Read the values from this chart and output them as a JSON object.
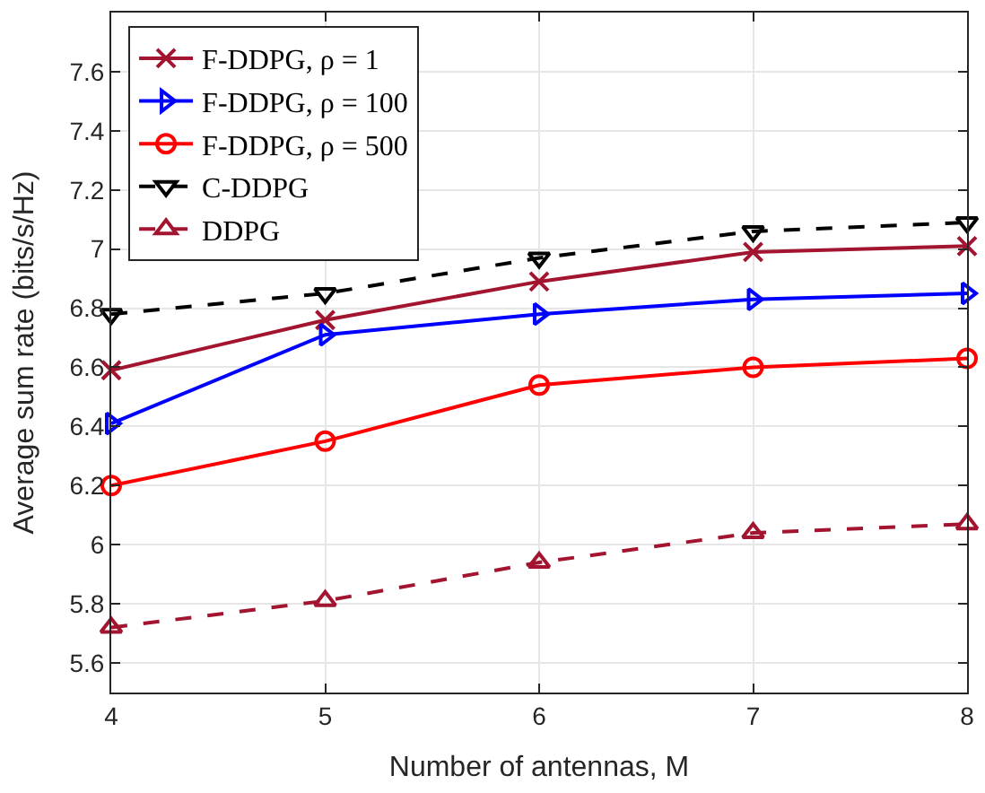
{
  "chart_data": {
    "type": "line",
    "xlabel": "Number of antennas, M",
    "ylabel": "Average sum rate (bits/s/Hz)",
    "x": [
      4,
      5,
      6,
      7,
      8
    ],
    "series": [
      {
        "name": "F-DDPG, ρ = 1",
        "color": "#a2142f",
        "marker": "cross",
        "line_style": "solid",
        "values": [
          6.59,
          6.76,
          6.89,
          6.99,
          7.01
        ]
      },
      {
        "name": "F-DDPG, ρ = 100",
        "color": "#0000ff",
        "marker": "triangle-right",
        "line_style": "solid",
        "values": [
          6.41,
          6.71,
          6.78,
          6.83,
          6.85
        ]
      },
      {
        "name": "F-DDPG, ρ = 500",
        "color": "#ff0000",
        "marker": "circle",
        "line_style": "solid",
        "values": [
          6.2,
          6.35,
          6.54,
          6.6,
          6.63
        ]
      },
      {
        "name": "C-DDPG",
        "color": "#000000",
        "marker": "triangle-down",
        "line_style": "dashed",
        "values": [
          6.78,
          6.85,
          6.97,
          7.06,
          7.09
        ]
      },
      {
        "name": "DDPG",
        "color": "#a2142f",
        "marker": "triangle",
        "line_style": "dashed",
        "values": [
          5.72,
          5.81,
          5.94,
          6.04,
          6.07
        ]
      }
    ],
    "xlim": [
      4,
      8
    ],
    "xticks": [
      4,
      5,
      6,
      7,
      8
    ],
    "ylim": [
      5.5,
      7.8
    ],
    "yticks": [
      5.6,
      5.8,
      6,
      6.2,
      6.4,
      6.6,
      6.8,
      7,
      7.2,
      7.4,
      7.6
    ],
    "grid": true,
    "legend": "top left"
  }
}
